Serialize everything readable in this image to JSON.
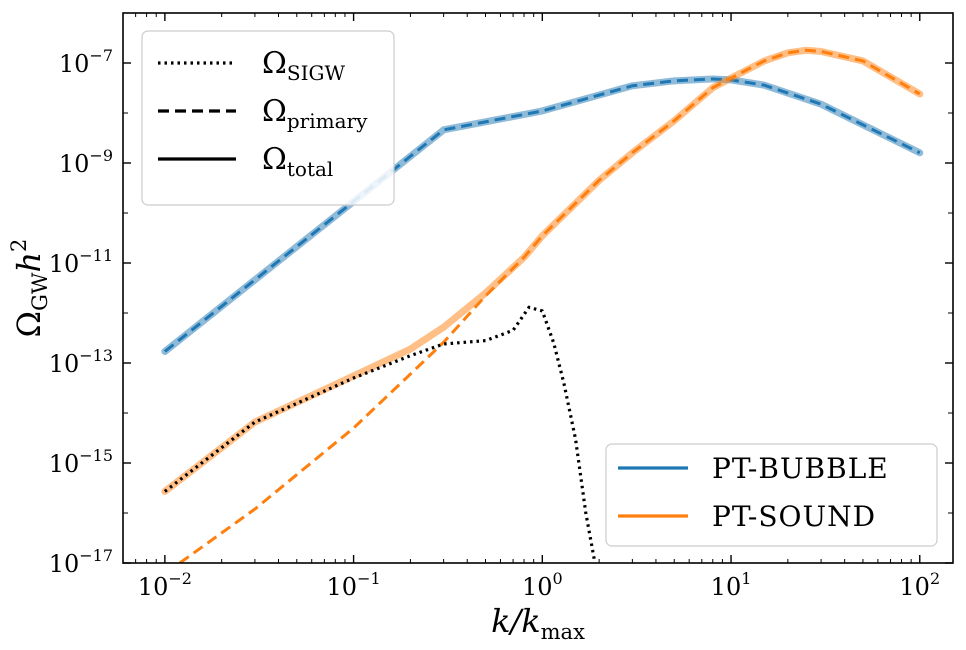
{
  "chart_data": {
    "type": "line",
    "title": "",
    "xlabel": "k/k",
    "xlabel_sub": "max",
    "ylabel": "Ω",
    "ylabel_sub": "GW",
    "ylabel_tail": "h",
    "ylabel_sup": "2",
    "x_scale": "log",
    "y_scale": "log",
    "xlim": [
      0.006,
      150
    ],
    "ylim": [
      1e-17,
      1e-06
    ],
    "x_ticks": [
      {
        "value": 0.01,
        "base": "10",
        "exp": "−2"
      },
      {
        "value": 0.1,
        "base": "10",
        "exp": "−1"
      },
      {
        "value": 1,
        "base": "10",
        "exp": "0"
      },
      {
        "value": 10,
        "base": "10",
        "exp": "1"
      },
      {
        "value": 100,
        "base": "10",
        "exp": "2"
      }
    ],
    "y_ticks": [
      {
        "value": 1e-17,
        "base": "10",
        "exp": "−17"
      },
      {
        "value": 1e-15,
        "base": "10",
        "exp": "−15"
      },
      {
        "value": 1e-13,
        "base": "10",
        "exp": "−13"
      },
      {
        "value": 1e-11,
        "base": "10",
        "exp": "−11"
      },
      {
        "value": 1e-09,
        "base": "10",
        "exp": "−9"
      },
      {
        "value": 1e-07,
        "base": "10",
        "exp": "−7"
      }
    ],
    "grid": false,
    "style_legend": {
      "placement": "top-left",
      "entries": [
        {
          "label": "Ω",
          "sub": "SIGW",
          "dash": "dotted"
        },
        {
          "label": "Ω",
          "sub": "primary",
          "dash": "dashed"
        },
        {
          "label": "Ω",
          "sub": "total",
          "dash": "solid"
        }
      ]
    },
    "color_legend": {
      "placement": "bottom-right",
      "entries": [
        {
          "label": "PT-BUBBLE",
          "color": "#1f77b4"
        },
        {
          "label": "PT-SOUND",
          "color": "#ff7f0e"
        }
      ]
    },
    "series": [
      {
        "name": "PT-BUBBLE",
        "component": "total",
        "dash": "solid",
        "color": "#1f77b4",
        "alpha": 0.5,
        "x": [
          0.01,
          0.03,
          0.1,
          0.3,
          1,
          3,
          5,
          8,
          10,
          15,
          30,
          100
        ],
        "y": [
          1.7e-13,
          4.6e-12,
          1.7e-10,
          4.6e-09,
          1.1e-08,
          3.5e-08,
          4.4e-08,
          4.8e-08,
          4.6e-08,
          3.6e-08,
          1.5e-08,
          1.6e-09
        ]
      },
      {
        "name": "PT-BUBBLE",
        "component": "primary",
        "dash": "dashed",
        "color": "#1f77b4",
        "alpha": 1,
        "x": [
          0.01,
          0.03,
          0.1,
          0.3,
          1,
          3,
          5,
          8,
          10,
          15,
          30,
          100
        ],
        "y": [
          1.7e-13,
          4.6e-12,
          1.7e-10,
          4.6e-09,
          1.1e-08,
          3.5e-08,
          4.4e-08,
          4.8e-08,
          4.6e-08,
          3.6e-08,
          1.5e-08,
          1.6e-09
        ]
      },
      {
        "name": "PT-SOUND",
        "component": "total",
        "dash": "solid",
        "color": "#ff7f0e",
        "alpha": 0.5,
        "x": [
          0.01,
          0.03,
          0.1,
          0.2,
          0.3,
          0.5,
          0.8,
          1,
          2,
          3,
          5,
          8,
          10,
          15,
          20,
          25,
          30,
          50,
          100
        ],
        "y": [
          2.7e-16,
          6.6e-15,
          5.5e-14,
          1.9e-13,
          5.2e-13,
          2.5e-12,
          1.3e-11,
          3.5e-11,
          4.5e-10,
          1.6e-09,
          7e-09,
          3.2e-08,
          5e-08,
          1.1e-07,
          1.6e-07,
          1.8e-07,
          1.7e-07,
          1.1e-07,
          2.4e-08
        ]
      },
      {
        "name": "PT-SOUND",
        "component": "primary",
        "dash": "dashed",
        "color": "#ff7f0e",
        "alpha": 1,
        "x": [
          0.012,
          0.03,
          0.1,
          0.2,
          0.3,
          0.5,
          0.8,
          1,
          2,
          3,
          5,
          8,
          10,
          15,
          20,
          25,
          30,
          50,
          100
        ],
        "y": [
          1e-17,
          1.2e-16,
          5e-15,
          6e-14,
          2.6e-13,
          2.2e-12,
          1.3e-11,
          3.5e-11,
          4.5e-10,
          1.6e-09,
          7e-09,
          3.2e-08,
          5e-08,
          1.1e-07,
          1.6e-07,
          1.8e-07,
          1.7e-07,
          1.1e-07,
          2.4e-08
        ]
      },
      {
        "name": "PT-SOUND",
        "component": "SIGW",
        "dash": "dotted",
        "color": "#000000",
        "alpha": 1,
        "x": [
          0.01,
          0.03,
          0.1,
          0.2,
          0.3,
          0.5,
          0.7,
          0.85,
          1.0,
          1.15,
          1.3,
          1.5,
          1.7,
          1.9
        ],
        "y": [
          2.7e-16,
          6.6e-15,
          5e-14,
          1.4e-13,
          2.4e-13,
          2.8e-13,
          4.5e-13,
          1.3e-12,
          1.1e-12,
          2.5e-13,
          4e-14,
          3e-15,
          1e-16,
          1e-17
        ]
      }
    ]
  }
}
